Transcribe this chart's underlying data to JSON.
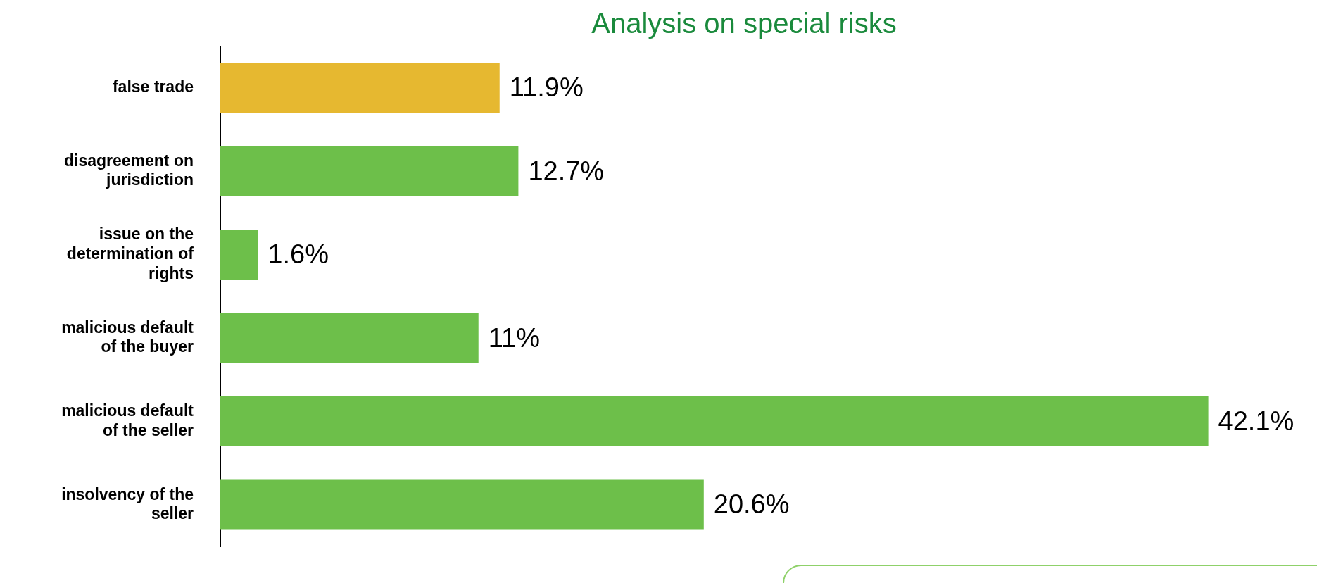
{
  "chart_data": {
    "type": "bar",
    "orientation": "horizontal",
    "title": "Analysis on special risks",
    "categories": [
      "false trade",
      "disagreement on jurisdiction",
      "issue on the determination of rights",
      "malicious default of the buyer",
      "malicious default of the seller",
      "insolvency of the seller"
    ],
    "values": [
      11.9,
      12.7,
      1.6,
      11,
      42.1,
      20.6
    ],
    "colors": [
      "#e6b830",
      "#6dbf4a",
      "#6dbf4a",
      "#6dbf4a",
      "#6dbf4a",
      "#6dbf4a"
    ],
    "value_labels": [
      "11.9%",
      "12.7%",
      "1.6%",
      "11%",
      "42.1%",
      "20.6%"
    ]
  }
}
